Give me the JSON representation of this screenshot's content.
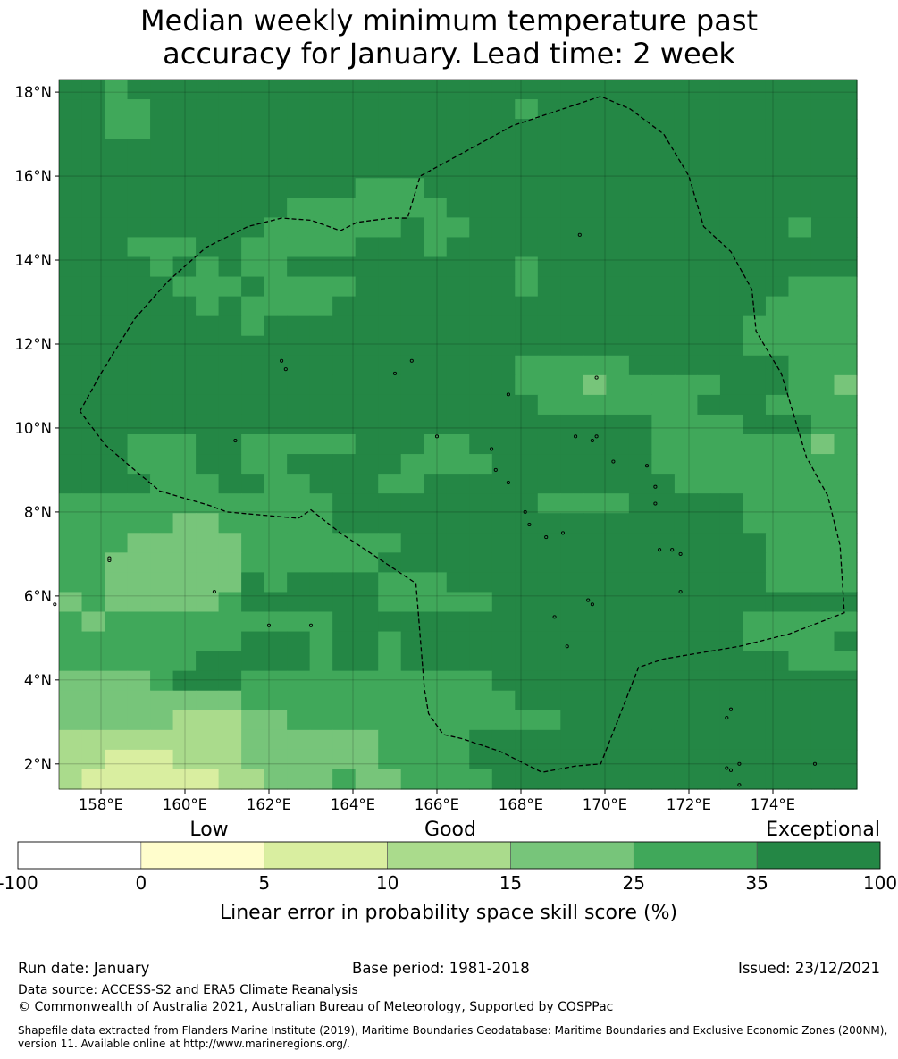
{
  "title": {
    "line1": "Median weekly minimum temperature past",
    "line2": "accuracy for January. Lead time: 2 week"
  },
  "map": {
    "lat_range": [
      1.4,
      18.3
    ],
    "lon_range": [
      157.0,
      176.0
    ],
    "cell_size_deg": 0.55,
    "lat_ticks": [
      "2°N",
      "4°N",
      "6°N",
      "8°N",
      "10°N",
      "12°N",
      "14°N",
      "16°N",
      "18°N"
    ],
    "lon_ticks": [
      "158°E",
      "160°E",
      "162°E",
      "164°E",
      "166°E",
      "168°E",
      "170°E",
      "172°E",
      "174°E"
    ],
    "eez_boundary": "dashed-black",
    "grid": true
  },
  "legend": {
    "categories": [
      "Low",
      "Good",
      "Exceptional"
    ],
    "boundaries": [
      "-100",
      "0",
      "5",
      "10",
      "15",
      "25",
      "35",
      "100"
    ],
    "colors": [
      "#ffffff",
      "#fffdcc",
      "#d9eea0",
      "#aadb8c",
      "#77c57a",
      "#40a85a",
      "#248745"
    ],
    "label": "Linear error in probability space skill score (%)"
  },
  "footer": {
    "run_date": "Run date: January",
    "base_period": "Base period: 1981-2018",
    "issued": "Issued: 23/12/2021",
    "data_source": "Data source: ACCESS-S2 and ERA5 Climate Reanalysis",
    "copyright": "© Commonwealth of Australia 2021, Australian Bureau of Meteorology, Supported by COSPPac",
    "shapefile_line1": "Shapefile data extracted from Flanders Marine Institute (2019), Maritime Boundaries Geodatabase: Maritime Boundaries and Exclusive Economic Zones (200NM),",
    "shapefile_line2": "version 11. Available online at http://www.marineregions.org/."
  }
}
